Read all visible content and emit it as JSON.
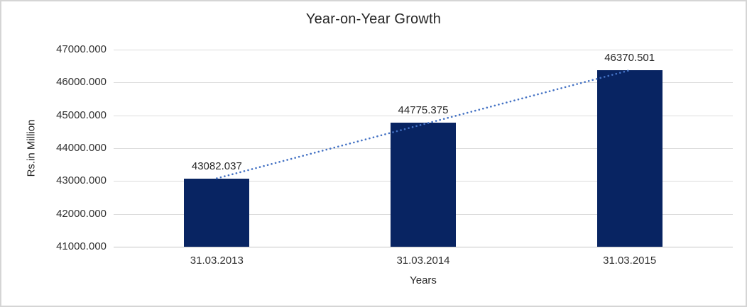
{
  "window": {
    "background": "#ffffff",
    "border_color": "#d5d5d5"
  },
  "chart_data": {
    "type": "bar",
    "title": "Year-on-Year Growth",
    "xlabel": "Years",
    "ylabel": "Rs.in Million",
    "categories": [
      "31.03.2013",
      "31.03.2014",
      "31.03.2015"
    ],
    "values": [
      43082.037,
      44775.375,
      46370.501
    ],
    "value_labels": [
      "43082.037",
      "44775.375",
      "46370.501"
    ],
    "ylim": [
      41000,
      47000
    ],
    "ytick_step": 1000,
    "ytick_labels": [
      "41000.000",
      "42000.000",
      "43000.000",
      "44000.000",
      "45000.000",
      "46000.000",
      "47000.000"
    ],
    "grid": true,
    "legend_position": "none",
    "trendline": {
      "type": "linear",
      "style": "dotted",
      "from_category": "31.03.2013",
      "to_category": "31.03.2015"
    },
    "colors": {
      "bar": "#082462",
      "trendline": "#4472c4",
      "gridline": "#dcdcdc",
      "axis_line": "#c6c6c6",
      "text": "#262626"
    }
  }
}
